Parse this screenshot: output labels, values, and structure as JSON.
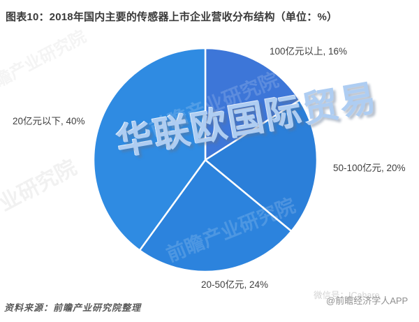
{
  "header": {
    "title": "图表10：2018年国内主要的传感器上市企业营收分布结构（单位：%）"
  },
  "chart_data": {
    "type": "pie",
    "title": "2018年国内主要的传感器上市企业营收分布结构",
    "unit": "%",
    "direction": "clockwise",
    "start_angle_deg": 0,
    "legend": "none",
    "slice_border_color": "#ffffff",
    "slices": [
      {
        "label": "100亿元以上",
        "value": 16,
        "display": "100亿元以上, 16%",
        "color": "#3d76d8"
      },
      {
        "label": "50-100亿元",
        "value": 20,
        "display": "50-100亿元, 20%",
        "color": "#2b7fd9"
      },
      {
        "label": "20-50亿元",
        "value": 24,
        "display": "20-50亿元, 24%",
        "color": "#2c83dd"
      },
      {
        "label": "20亿元以下",
        "value": 40,
        "display": "20亿元以下, 40%",
        "color": "#2f8be2"
      }
    ]
  },
  "watermarks": {
    "main": "华联欧国际贸易",
    "corner": "前瞻产业研究院",
    "wechat_faint": "微信号：ICahare",
    "account": "@前瞻经济学人APP"
  },
  "footer": {
    "source": "资料来源：前瞻产业研究院整理"
  }
}
